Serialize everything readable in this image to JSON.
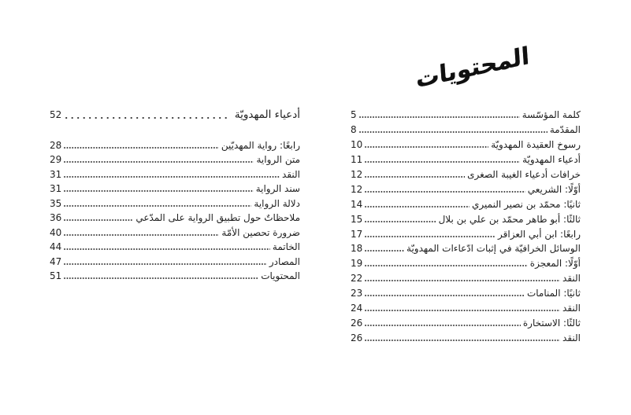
{
  "title": {
    "text": "المحتويات"
  },
  "right_page": {
    "entries": [
      {
        "title": "كلمة المؤسّسة",
        "page": "5"
      },
      {
        "title": "المقدّمة",
        "page": "8"
      },
      {
        "title": "رسوخ العقيدة المهدويّة",
        "page": "10"
      },
      {
        "title": "أدعياء المهدويّة",
        "page": "11"
      },
      {
        "title": "خرافات أدعياء الغيبة الصغرى",
        "page": "12"
      },
      {
        "title": "أوّلًا: الشريعي",
        "page": "12"
      },
      {
        "title": "ثانيًا: محمّد بن نصير النميري",
        "page": "14"
      },
      {
        "title": "ثالثًا: أبو طاهر محمّد بن علي بن بلال",
        "page": "15"
      },
      {
        "title": "رابعًا: ابن أبي العزاقر",
        "page": "17"
      },
      {
        "title": "الوسائل الخرافيّة في إثبات ادّعاءات المهدويّة",
        "page": "18"
      },
      {
        "title": "أوّلًا: المعجزة",
        "page": "19"
      },
      {
        "title": "النقد",
        "page": "22"
      },
      {
        "title": "ثانيًا: المنامات",
        "page": "23"
      },
      {
        "title": "النقد",
        "page": "24"
      },
      {
        "title": "ثالثًا: الاستخارة",
        "page": "26"
      },
      {
        "title": "النقد",
        "page": "26"
      }
    ]
  },
  "left_page": {
    "chapter_entry": {
      "title": "أدعياء المهدويّة",
      "page": "52"
    },
    "entries": [
      {
        "title": "رابعًا: رواية المهديّين",
        "page": "28"
      },
      {
        "title": "متن الرواية",
        "page": "29"
      },
      {
        "title": "النقد",
        "page": "31"
      },
      {
        "title": "سند الرواية",
        "page": "31"
      },
      {
        "title": "دلالة الرواية",
        "page": "35"
      },
      {
        "title": "ملاحظاتٌ حول تطبيق الرواية على المدّعي",
        "page": "36"
      },
      {
        "title": "ضرورة تحصين الأمّة",
        "page": "40"
      },
      {
        "title": "الخاتمة",
        "page": "44"
      },
      {
        "title": "المصادر",
        "page": "47"
      },
      {
        "title": "المحتويات",
        "page": "51"
      }
    ]
  }
}
